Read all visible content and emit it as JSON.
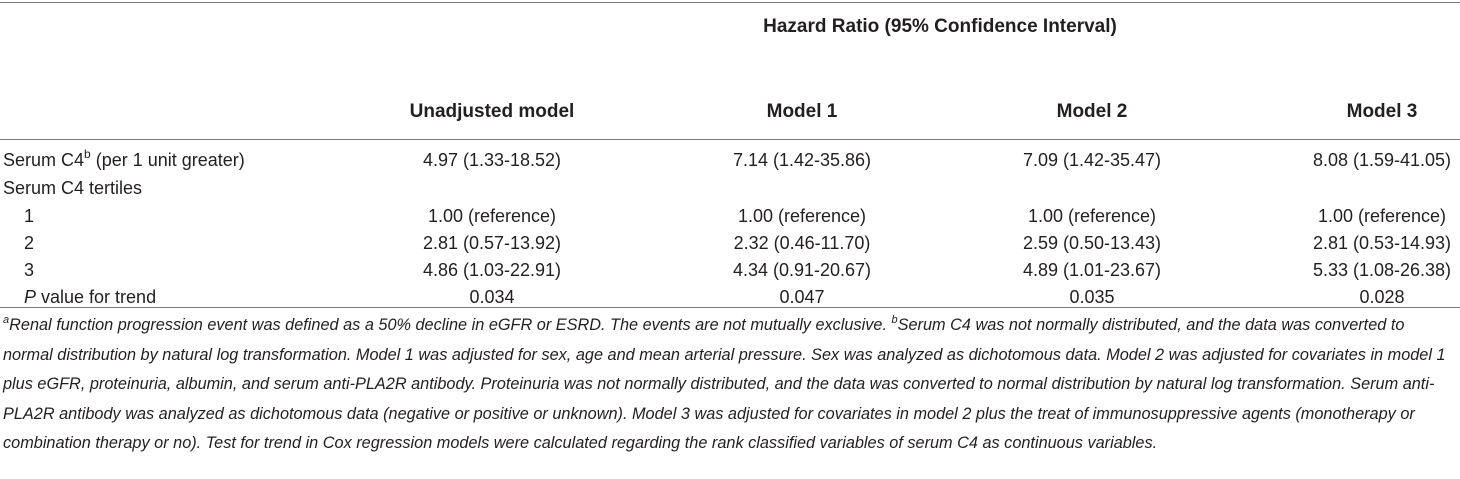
{
  "table": {
    "group_header": "Hazard Ratio (95% Confidence Interval)",
    "columns": [
      "Unadjusted model",
      "Model 1",
      "Model 2",
      "Model 3"
    ],
    "rows": [
      {
        "label": "Serum C4",
        "sup": "b",
        "label_suffix": " (per 1 unit greater)",
        "values": [
          "4.97 (1.33-18.52)",
          "7.14 (1.42-35.86)",
          "7.09 (1.42-35.47)",
          "8.08 (1.59-41.05)"
        ]
      },
      {
        "label": "Serum C4 tertiles",
        "values": [
          "",
          "",
          "",
          ""
        ]
      },
      {
        "label": "1",
        "values": [
          "1.00 (reference)",
          "1.00 (reference)",
          "1.00 (reference)",
          "1.00 (reference)"
        ]
      },
      {
        "label": "2",
        "values": [
          "2.81 (0.57-13.92)",
          "2.32 (0.46-11.70)",
          "2.59 (0.50-13.43)",
          "2.81 (0.53-14.93)"
        ]
      },
      {
        "label": "3",
        "values": [
          "4.86 (1.03-22.91)",
          "4.34 (0.91-20.67)",
          "4.89 (1.01-23.67)",
          "5.33 (1.08-26.38)"
        ]
      },
      {
        "label_italic": "P",
        "label": " value for trend",
        "values": [
          "0.034",
          "0.047",
          "0.035",
          "0.028"
        ]
      }
    ]
  },
  "footnote": {
    "a_marker": "a",
    "a_text": "Renal function progression event was defined as a 50% decline in eGFR or ESRD. The events are not mutually exclusive. ",
    "b_marker": "b",
    "b_text": "Serum C4 was not normally distributed, and the data was converted to normal distribution by natural log transformation. Model 1 was adjusted for sex, age and mean arterial pressure. Sex was analyzed as dichotomous data. Model 2 was adjusted for covariates in model 1 plus eGFR, proteinuria, albumin, and serum anti-PLA2R antibody. Proteinuria was not normally distributed, and the data was converted to normal distribution by natural log transformation. Serum anti-PLA2R antibody was analyzed as dichotomous data (negative or positive or unknown). Model 3 was adjusted for covariates in model 2 plus the treat of immunosuppressive agents (monotherapy or combination therapy or no). Test for trend in Cox regression models were calculated regarding the rank classified variables of serum C4 as continuous variables."
  }
}
